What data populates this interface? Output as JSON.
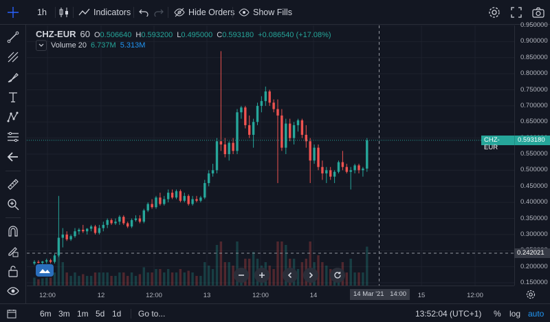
{
  "toolbar": {
    "interval": "1h",
    "indicators_label": "Indicators",
    "hide_orders_label": "Hide Orders",
    "show_fills_label": "Show Fills"
  },
  "legend": {
    "symbol": "CHZ-EUR",
    "interval": "60",
    "open_key": "O",
    "open": "0.506640",
    "high_key": "H",
    "high": "0.593200",
    "low_key": "L",
    "low": "0.495000",
    "close_key": "C",
    "close": "0.593180",
    "change": "+0.086540 (+17.08%)",
    "volume_label": "Volume 20",
    "volume_value": "6.737M",
    "volume_ma": "5.313M"
  },
  "price_axis": {
    "labels": [
      "0.950000",
      "0.900000",
      "0.850000",
      "0.800000",
      "0.750000",
      "0.700000",
      "0.650000",
      "0.600000",
      "0.550000",
      "0.500000",
      "0.450000",
      "0.400000",
      "0.350000",
      "0.300000",
      "0.250000",
      "0.200000",
      "0.150000"
    ],
    "last_price_name": "CHZ-EUR",
    "last_price": "0.593180",
    "crosshair_price": "0.242021"
  },
  "time_axis": {
    "labels": [
      "12:00",
      "12",
      "12:00",
      "13",
      "12:00",
      "14",
      "15",
      "12:00"
    ],
    "crosshair_date": "14 Mar '21",
    "crosshair_time": "14:00"
  },
  "bottom": {
    "ranges": [
      "6m",
      "3m",
      "1m",
      "5d",
      "1d"
    ],
    "goto_label": "Go to...",
    "clock": "13:52:04 (UTC+1)",
    "percent_label": "%",
    "log_label": "log",
    "auto_label": "auto"
  },
  "colors": {
    "background": "#131722",
    "up": "#26a69a",
    "down": "#ef5350",
    "accent": "#2196f3",
    "grid": "#1e222d"
  },
  "chart_data": {
    "type": "candlestick",
    "title": "CHZ-EUR, 60",
    "ylim": [
      0.15,
      0.95
    ],
    "x_ticks": [
      "12:00",
      "12",
      "12:00",
      "13",
      "12:00",
      "14",
      "15",
      "12:00"
    ],
    "series": [
      {
        "name": "CHZ-EUR",
        "candles": [
          [
            0.21,
            0.22,
            0.205,
            0.215
          ],
          [
            0.215,
            0.22,
            0.21,
            0.212
          ],
          [
            0.212,
            0.218,
            0.205,
            0.216
          ],
          [
            0.216,
            0.225,
            0.21,
            0.22
          ],
          [
            0.22,
            0.225,
            0.21,
            0.215
          ],
          [
            0.215,
            0.24,
            0.21,
            0.235
          ],
          [
            0.235,
            0.42,
            0.23,
            0.29
          ],
          [
            0.29,
            0.32,
            0.26,
            0.3
          ],
          [
            0.3,
            0.31,
            0.28,
            0.285
          ],
          [
            0.285,
            0.3,
            0.28,
            0.295
          ],
          [
            0.295,
            0.32,
            0.29,
            0.31
          ],
          [
            0.31,
            0.32,
            0.3,
            0.315
          ],
          [
            0.315,
            0.33,
            0.305,
            0.31
          ],
          [
            0.31,
            0.32,
            0.3,
            0.318
          ],
          [
            0.318,
            0.33,
            0.31,
            0.325
          ],
          [
            0.325,
            0.33,
            0.3,
            0.305
          ],
          [
            0.305,
            0.33,
            0.3,
            0.32
          ],
          [
            0.32,
            0.34,
            0.31,
            0.33
          ],
          [
            0.33,
            0.35,
            0.32,
            0.345
          ],
          [
            0.345,
            0.35,
            0.33,
            0.335
          ],
          [
            0.335,
            0.35,
            0.33,
            0.34
          ],
          [
            0.34,
            0.36,
            0.33,
            0.355
          ],
          [
            0.355,
            0.36,
            0.33,
            0.335
          ],
          [
            0.335,
            0.34,
            0.32,
            0.325
          ],
          [
            0.325,
            0.35,
            0.32,
            0.345
          ],
          [
            0.345,
            0.36,
            0.34,
            0.35
          ],
          [
            0.35,
            0.36,
            0.335,
            0.34
          ],
          [
            0.34,
            0.38,
            0.335,
            0.375
          ],
          [
            0.375,
            0.4,
            0.37,
            0.395
          ],
          [
            0.395,
            0.41,
            0.38,
            0.385
          ],
          [
            0.385,
            0.42,
            0.38,
            0.415
          ],
          [
            0.415,
            0.43,
            0.39,
            0.395
          ],
          [
            0.395,
            0.42,
            0.39,
            0.41
          ],
          [
            0.41,
            0.44,
            0.4,
            0.43
          ],
          [
            0.43,
            0.44,
            0.41,
            0.415
          ],
          [
            0.415,
            0.44,
            0.41,
            0.435
          ],
          [
            0.435,
            0.44,
            0.4,
            0.405
          ],
          [
            0.405,
            0.43,
            0.4,
            0.42
          ],
          [
            0.42,
            0.425,
            0.39,
            0.395
          ],
          [
            0.395,
            0.42,
            0.39,
            0.41
          ],
          [
            0.41,
            0.42,
            0.4,
            0.405
          ],
          [
            0.405,
            0.42,
            0.4,
            0.415
          ],
          [
            0.415,
            0.47,
            0.41,
            0.46
          ],
          [
            0.46,
            0.5,
            0.45,
            0.49
          ],
          [
            0.49,
            0.52,
            0.48,
            0.5
          ],
          [
            0.5,
            0.6,
            0.49,
            0.59
          ],
          [
            0.59,
            0.87,
            0.56,
            0.58
          ],
          [
            0.58,
            0.6,
            0.54,
            0.55
          ],
          [
            0.55,
            0.59,
            0.53,
            0.585
          ],
          [
            0.585,
            0.6,
            0.55,
            0.56
          ],
          [
            0.56,
            0.69,
            0.55,
            0.68
          ],
          [
            0.68,
            0.7,
            0.66,
            0.695
          ],
          [
            0.695,
            0.7,
            0.63,
            0.64
          ],
          [
            0.64,
            0.67,
            0.6,
            0.61
          ],
          [
            0.61,
            0.66,
            0.57,
            0.65
          ],
          [
            0.65,
            0.71,
            0.64,
            0.7
          ],
          [
            0.7,
            0.73,
            0.68,
            0.715
          ],
          [
            0.715,
            0.76,
            0.7,
            0.745
          ],
          [
            0.745,
            0.75,
            0.7,
            0.71
          ],
          [
            0.71,
            0.72,
            0.68,
            0.69
          ],
          [
            0.69,
            0.72,
            0.46,
            0.67
          ],
          [
            0.67,
            0.69,
            0.56,
            0.57
          ],
          [
            0.57,
            0.66,
            0.55,
            0.645
          ],
          [
            0.645,
            0.66,
            0.59,
            0.6
          ],
          [
            0.6,
            0.65,
            0.58,
            0.64
          ],
          [
            0.64,
            0.66,
            0.62,
            0.655
          ],
          [
            0.655,
            0.66,
            0.6,
            0.61
          ],
          [
            0.61,
            0.64,
            0.57,
            0.59
          ],
          [
            0.59,
            0.6,
            0.46,
            0.53
          ],
          [
            0.53,
            0.58,
            0.52,
            0.57
          ],
          [
            0.57,
            0.58,
            0.5,
            0.51
          ],
          [
            0.51,
            0.53,
            0.47,
            0.49
          ],
          [
            0.49,
            0.51,
            0.46,
            0.5
          ],
          [
            0.5,
            0.51,
            0.47,
            0.48
          ],
          [
            0.48,
            0.5,
            0.46,
            0.495
          ],
          [
            0.495,
            0.53,
            0.49,
            0.525
          ],
          [
            0.525,
            0.56,
            0.5,
            0.51
          ],
          [
            0.51,
            0.52,
            0.49,
            0.495
          ],
          [
            0.495,
            0.51,
            0.44,
            0.5
          ],
          [
            0.5,
            0.52,
            0.49,
            0.515
          ],
          [
            0.515,
            0.52,
            0.49,
            0.5
          ],
          [
            0.5,
            0.51,
            0.48,
            0.505
          ],
          [
            0.505,
            0.6,
            0.495,
            0.593
          ]
        ]
      }
    ]
  }
}
